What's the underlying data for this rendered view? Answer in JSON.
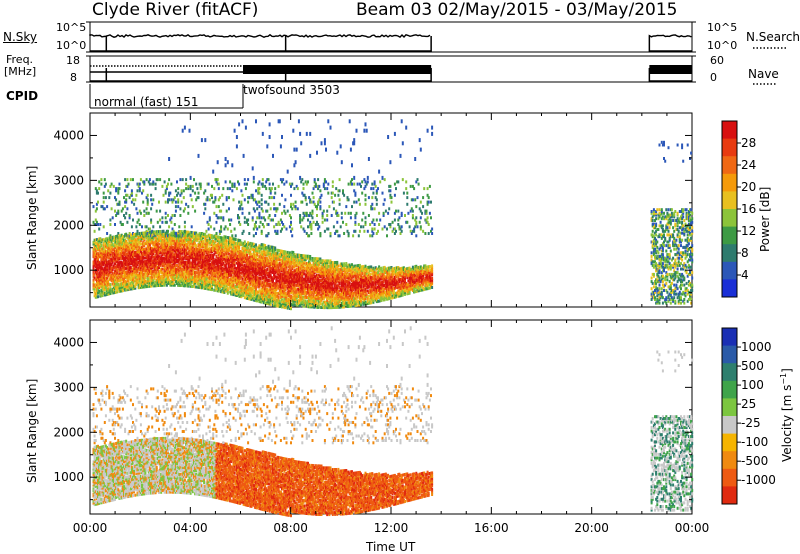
{
  "header": {
    "station": "Clyde River (fitACF)",
    "beam_and_dates": "Beam 03 02/May/2015 - 03/May/2015"
  },
  "panels": {
    "nsky": {
      "left_label": "N.Sky",
      "right_label": "N.Search",
      "left_ticks": [
        "10^5",
        "10^0"
      ],
      "right_ticks": [
        "10^5",
        "10^0"
      ]
    },
    "freq": {
      "left_label_line1": "Freq.",
      "left_label_line2": "[MHz]",
      "left_ticks": [
        "18",
        "8"
      ],
      "right_label": "Nave",
      "right_ticks": [
        "60",
        "0"
      ]
    },
    "cpid": {
      "label": "CPID",
      "modes": [
        {
          "name": "normal (fast) 151"
        },
        {
          "name": "twofsound 3503"
        }
      ]
    }
  },
  "chart_data": [
    {
      "type": "heatmap",
      "title": "",
      "xlabel": "Time UT",
      "ylabel": "Slant Range [km]",
      "x_ticks": [
        "00:00",
        "04:00",
        "08:00",
        "12:00",
        "16:00",
        "20:00",
        "00:00"
      ],
      "y_ticks": [
        1000,
        2000,
        3000,
        4000
      ],
      "xlim_hours": [
        0,
        24
      ],
      "ylim_km": [
        180,
        4500
      ],
      "data_coverage_hours": [
        [
          0,
          13.6
        ],
        [
          22.3,
          24
        ]
      ],
      "colorbar": {
        "label": "Power [dB]",
        "ticks": [
          "4",
          "8",
          "12",
          "16",
          "20",
          "24",
          "28"
        ],
        "colors": [
          "#1a2fd6",
          "#2b57b8",
          "#2e7b6e",
          "#3d9a44",
          "#8cc43a",
          "#e8c020",
          "#f59a0a",
          "#f06814",
          "#e83a10",
          "#d81010"
        ]
      }
    },
    {
      "type": "heatmap",
      "title": "",
      "xlabel": "Time UT",
      "ylabel": "Slant Range [km]",
      "x_ticks": [
        "00:00",
        "04:00",
        "08:00",
        "12:00",
        "16:00",
        "20:00",
        "00:00"
      ],
      "y_ticks": [
        1000,
        2000,
        3000,
        4000
      ],
      "xlim_hours": [
        0,
        24
      ],
      "ylim_km": [
        180,
        4500
      ],
      "data_coverage_hours": [
        [
          0,
          13.6
        ],
        [
          22.3,
          24
        ]
      ],
      "colorbar": {
        "label": "Velocity [m s-1]",
        "ticks": [
          "1000",
          "500",
          "100",
          "25",
          "-25",
          "-100",
          "-500",
          "-1000"
        ],
        "colors": [
          "#1a2fb4",
          "#2a5aa8",
          "#2e7f6e",
          "#3fa44a",
          "#7cc640",
          "#c8c8c8",
          "#f5b400",
          "#f08a10",
          "#ee5a12",
          "#e02a10"
        ]
      }
    }
  ]
}
